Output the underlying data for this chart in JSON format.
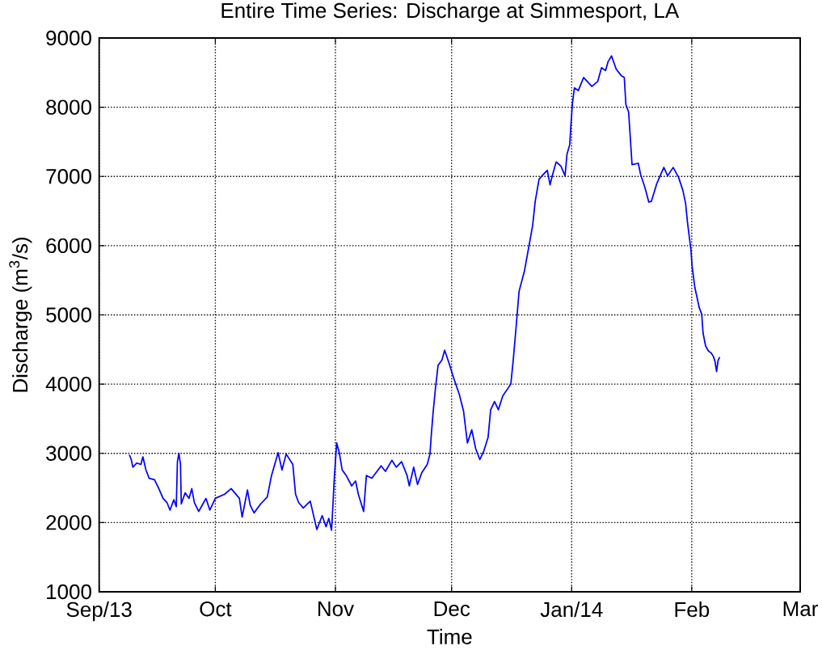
{
  "chart_data": {
    "type": "line",
    "title": "Entire Time Series: Discharge at Simmesport, LA",
    "xlabel": "Time",
    "ylabel": "Discharge (m$^{3}$/s)",
    "color": "#0000ff",
    "grid": true,
    "xlim": [
      "2013-09-01",
      "2014-03-01"
    ],
    "ylim": [
      1000,
      9000
    ],
    "xticks": [
      {
        "value": "2013-09-01",
        "label": "Sep/13"
      },
      {
        "value": "2013-10-01",
        "label": "Oct"
      },
      {
        "value": "2013-11-01",
        "label": "Nov"
      },
      {
        "value": "2013-12-01",
        "label": "Dec"
      },
      {
        "value": "2014-01-01",
        "label": "Jan/14"
      },
      {
        "value": "2014-02-01",
        "label": "Feb"
      },
      {
        "value": "2014-03-01",
        "label": "Mar"
      }
    ],
    "yticks": [
      1000,
      2000,
      3000,
      4000,
      5000,
      6000,
      7000,
      8000,
      9000
    ],
    "x": [
      "2013-09-08T19:00",
      "2013-09-09T07:00",
      "2013-09-09T17:00",
      "2013-09-10T17:00",
      "2013-09-11T19:00",
      "2013-09-12T07:00",
      "2013-09-13T02:00",
      "2013-09-13T22:00",
      "2013-09-15T07:00",
      "2013-09-16T10:00",
      "2013-09-17T12:00",
      "2013-09-18T12:00",
      "2013-09-19T07:00",
      "2013-09-20T07:00",
      "2013-09-20T22:00",
      "2013-09-21T05:00",
      "2013-09-21T14:00",
      "2013-09-22T00:00",
      "2013-09-22T05:00",
      "2013-09-23T05:00",
      "2013-09-24T05:00",
      "2013-09-24T22:00",
      "2013-09-25T14:00",
      "2013-09-26T17:00",
      "2013-09-27T19:00",
      "2013-09-28T14:00",
      "2013-09-29T14:00",
      "2013-10-01T00:00",
      "2013-10-03T10:00",
      "2013-10-05T02:00",
      "2013-10-07T05:00",
      "2013-10-07T22:00",
      "2013-10-09T07:00",
      "2013-10-10T00:00",
      "2013-10-11T00:00",
      "2013-10-12T17:00",
      "2013-10-14T10:00",
      "2013-10-15T12:00",
      "2013-10-17T05:00",
      "2013-10-18T05:00",
      "2013-10-19T07:00",
      "2013-10-21T00:00",
      "2013-10-21T17:00",
      "2013-10-22T12:00",
      "2013-10-23T17:00",
      "2013-10-25T12:00",
      "2013-10-27T05:00",
      "2013-10-28T14:00",
      "2013-10-29T14:00",
      "2013-10-30T07:00",
      "2013-10-31T00:00",
      "2013-10-31T07:00",
      "2013-10-31T17:00",
      "2013-11-01T08:00",
      "2013-11-02T00:00",
      "2013-11-02T18:00",
      "2013-11-03T19:00",
      "2013-11-05T05:00",
      "2013-11-06T05:00",
      "2013-11-06T22:00",
      "2013-11-08T07:00",
      "2013-11-09T00:00",
      "2013-11-10T10:00",
      "2013-11-12T19:00",
      "2013-11-13T22:00",
      "2013-11-15T14:00",
      "2013-11-16T17:00",
      "2013-11-18T02:00",
      "2013-11-19T12:00",
      "2013-11-20T02:00",
      "2013-11-21T05:00",
      "2013-11-22T05:00",
      "2013-11-23T07:00",
      "2013-11-24T17:00",
      "2013-11-25T10:00",
      "2013-11-25T17:00",
      "2013-11-26T05:00",
      "2013-11-26T19:00",
      "2013-11-27T12:00",
      "2013-11-28T12:00",
      "2013-11-29T05:00",
      "2013-11-30T07:00",
      "2013-12-01T14:00",
      "2013-12-03T00:00",
      "2013-12-04T02:00",
      "2013-12-05T02:00",
      "2013-12-06T05:00",
      "2013-12-07T05:00",
      "2013-12-08T07:00",
      "2013-12-09T07:00",
      "2013-12-10T10:00",
      "2013-12-11T02:00",
      "2013-12-12T02:00",
      "2013-12-13T02:00",
      "2013-12-14T05:00",
      "2013-12-16T07:00",
      "2013-12-16T22:00",
      "2013-12-17T17:00",
      "2013-12-18T10:00",
      "2013-12-19T19:00",
      "2013-12-20T19:00",
      "2013-12-21T22:00",
      "2013-12-22T14:00",
      "2013-12-23T14:00",
      "2013-12-24T17:00",
      "2013-12-25T17:00",
      "2013-12-26T10:00",
      "2013-12-27T02:00",
      "2013-12-28T00:00",
      "2013-12-29T05:00",
      "2013-12-30T07:00",
      "2013-12-30T19:00",
      "2013-12-31T12:00",
      "2013-12-31T19:00",
      "2014-01-01T05:00",
      "2014-01-01T17:00",
      "2014-01-02T17:00",
      "2014-01-04T02:00",
      "2014-01-06T05:00",
      "2014-01-07T17:00",
      "2014-01-08T17:00",
      "2014-01-09T18:00",
      "2014-01-10T10:00",
      "2014-01-11T07:00",
      "2014-01-12T12:00",
      "2014-01-13T22:00",
      "2014-01-14T14:00",
      "2014-01-15T00:00",
      "2014-01-15T17:00",
      "2014-01-16T05:00",
      "2014-01-16T14:00",
      "2014-01-18T05:00",
      "2014-01-18T19:00",
      "2014-01-19T22:00",
      "2014-01-20T22:00",
      "2014-01-21T14:00",
      "2014-01-23T00:00",
      "2014-01-24T19:00",
      "2014-01-25T19:00",
      "2014-01-27T05:00",
      "2014-01-28T14:00",
      "2014-01-29T17:00",
      "2014-01-30T10:00",
      "2014-01-30T22:00",
      "2014-01-31T19:00",
      "2014-02-01T02:00",
      "2014-02-01T19:00",
      "2014-02-02T22:00",
      "2014-02-03T14:00",
      "2014-02-03T22:00",
      "2014-02-04T14:00",
      "2014-02-05T07:00",
      "2014-02-06T00:00",
      "2014-02-06T14:00",
      "2014-02-07T00:00",
      "2014-02-07T10:00",
      "2014-02-07T19:00",
      "2014-02-08T05:00"
    ],
    "values": [
      2980,
      2910,
      2800,
      2860,
      2840,
      2950,
      2760,
      2640,
      2620,
      2490,
      2350,
      2290,
      2180,
      2330,
      2230,
      2880,
      3000,
      2840,
      2270,
      2430,
      2350,
      2490,
      2290,
      2160,
      2270,
      2350,
      2180,
      2350,
      2410,
      2490,
      2350,
      2080,
      2470,
      2250,
      2140,
      2270,
      2370,
      2680,
      3010,
      2760,
      2990,
      2840,
      2410,
      2290,
      2210,
      2310,
      1900,
      2100,
      1940,
      2060,
      1890,
      2180,
      2640,
      3150,
      3010,
      2760,
      2680,
      2530,
      2600,
      2410,
      2160,
      2680,
      2640,
      2820,
      2740,
      2900,
      2800,
      2880,
      2680,
      2530,
      2800,
      2550,
      2720,
      2840,
      2990,
      3230,
      3580,
      3920,
      4270,
      4350,
      4490,
      4310,
      4080,
      3850,
      3610,
      3150,
      3340,
      3070,
      2910,
      3030,
      3230,
      3630,
      3750,
      3630,
      3830,
      4000,
      4350,
      4860,
      5340,
      5630,
      5940,
      6290,
      6640,
      6960,
      7030,
      7090,
      6880,
      7030,
      7210,
      7150,
      7010,
      7320,
      7460,
      7730,
      8060,
      8280,
      8240,
      8430,
      8300,
      8370,
      8570,
      8530,
      8660,
      8740,
      8550,
      8450,
      8430,
      8040,
      7930,
      7500,
      7170,
      7190,
      7030,
      6840,
      6630,
      6640,
      6900,
      7130,
      7010,
      7130,
      6990,
      6800,
      6610,
      6330,
      5940,
      5710,
      5400,
      5110,
      5010,
      4740,
      4550,
      4480,
      4450,
      4400,
      4330,
      4180,
      4340,
      4390
    ]
  }
}
